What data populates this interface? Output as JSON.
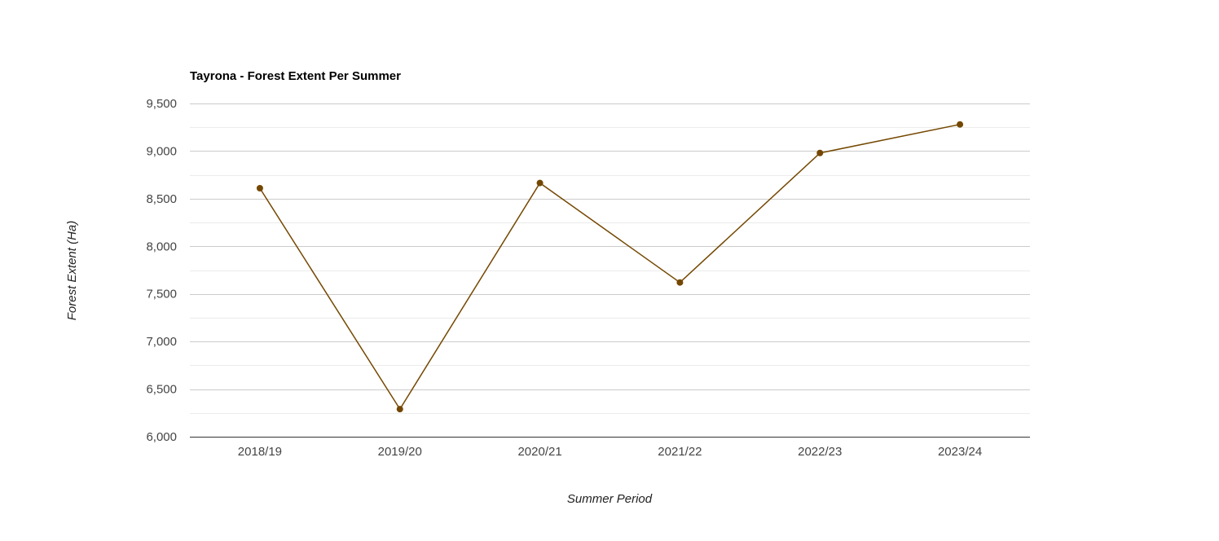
{
  "chart_data": {
    "type": "line",
    "title": "Tayrona - Forest Extent Per Summer",
    "xlabel": "Summer Period",
    "ylabel": "Forest Extent (Ha)",
    "categories": [
      "2018/19",
      "2019/20",
      "2020/21",
      "2021/22",
      "2022/23",
      "2023/24"
    ],
    "series": [
      {
        "values": [
          8610,
          6290,
          8665,
          7620,
          8980,
          9280
        ]
      }
    ],
    "ylim": [
      6000,
      9500
    ],
    "yticks": [
      6000,
      6500,
      7000,
      7500,
      8000,
      8500,
      9000,
      9500
    ],
    "ytick_labels": [
      "6,000",
      "6,500",
      "7,000",
      "7,500",
      "8,000",
      "8,500",
      "9,000",
      "9,500"
    ],
    "grid": true,
    "legend": "none",
    "colors": {
      "line": "#744700",
      "gridline": "#cccccc",
      "minor_gridline": "#ebebeb",
      "baseline": "#333333"
    }
  }
}
